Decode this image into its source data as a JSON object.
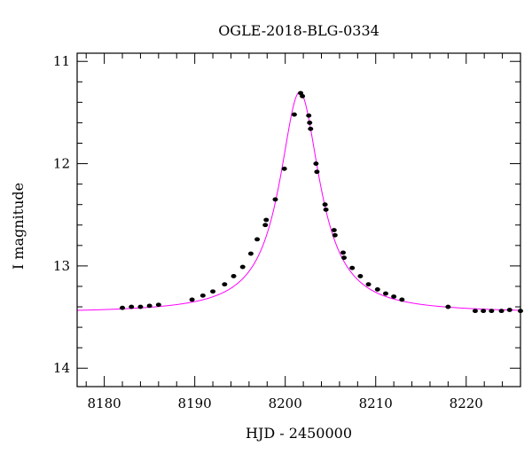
{
  "chart_data": {
    "type": "scatter",
    "title": "OGLE-2018-BLG-0334",
    "xlabel": "HJD - 2450000",
    "ylabel": "I magnitude",
    "xlim": [
      8177,
      8226
    ],
    "ylim": [
      14.18,
      10.92
    ],
    "y_inverted": true,
    "xticks": [
      8180,
      8190,
      8200,
      8210,
      8220
    ],
    "yticks": [
      11,
      12,
      13,
      14
    ],
    "grid": false,
    "legend": "none",
    "colors": {
      "points": "#000000",
      "model": "#ff00ff",
      "axes": "#000000"
    },
    "series": [
      {
        "kind": "points",
        "x": [
          8182.0,
          8183.0,
          8184.0,
          8185.0,
          8186.0,
          8189.7,
          8190.9,
          8192.0,
          8193.3,
          8194.3,
          8195.3,
          8196.2,
          8196.9,
          8197.8,
          8197.9,
          8198.9,
          8199.9,
          8201.0,
          8201.7,
          8201.9,
          8202.6,
          8202.7,
          8202.8,
          8203.4,
          8203.5,
          8204.4,
          8204.5,
          8205.4,
          8205.5,
          8206.4,
          8206.5,
          8207.4,
          8208.3,
          8209.2,
          8210.2,
          8211.1,
          8212.0,
          8212.9,
          8218.0,
          8221.0,
          8221.9,
          8222.8,
          8223.9,
          8224.8,
          8226.0
        ],
        "y": [
          13.41,
          13.4,
          13.4,
          13.39,
          13.38,
          13.33,
          13.29,
          13.25,
          13.18,
          13.1,
          13.01,
          12.88,
          12.74,
          12.6,
          12.55,
          12.35,
          12.05,
          11.52,
          11.31,
          11.34,
          11.53,
          11.6,
          11.66,
          12.0,
          12.08,
          12.4,
          12.45,
          12.65,
          12.7,
          12.87,
          12.92,
          13.02,
          13.1,
          13.18,
          13.23,
          13.27,
          13.3,
          13.33,
          13.4,
          13.44,
          13.44,
          13.44,
          13.44,
          13.43,
          13.44
        ]
      },
      {
        "kind": "model",
        "baseline": 13.46,
        "amp": 2.16,
        "t0": 8201.6,
        "tau": 2.7
      }
    ]
  }
}
